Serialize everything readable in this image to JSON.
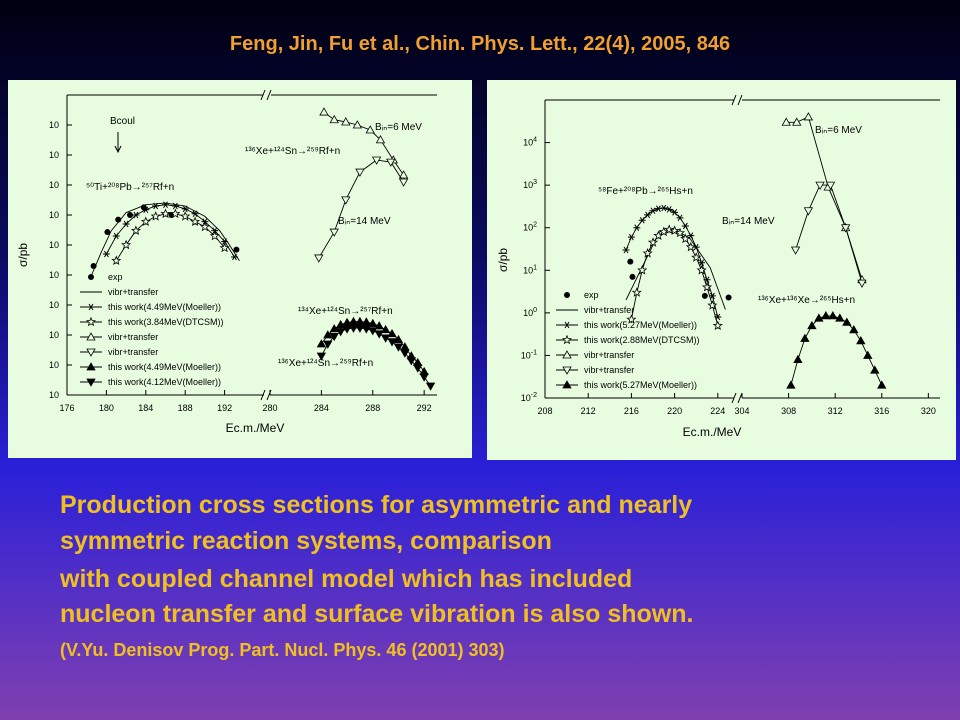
{
  "header": {
    "title": "Feng, Jin, Fu et al., Chin. Phys. Lett., 22(4), 2005, 846"
  },
  "chart_data": [
    {
      "type": "line",
      "y_label": "σ/pb",
      "x_label": "Ec.m./MeV",
      "log_y": true,
      "legend": "lower left",
      "ylim": [
        1e-05,
        100000.0
      ],
      "yticks": [
        {
          "value": 1e-05,
          "label": "10"
        },
        {
          "value": 0.0001,
          "label": "10"
        },
        {
          "value": 0.001,
          "label": "10"
        },
        {
          "value": 0.01,
          "label": "10"
        },
        {
          "value": 0.1,
          "label": "10"
        },
        {
          "value": 1,
          "label": "10"
        },
        {
          "value": 10,
          "label": "10"
        },
        {
          "value": 100,
          "label": "10"
        },
        {
          "value": 1000,
          "label": "10"
        },
        {
          "value": 10000,
          "label": "10"
        }
      ],
      "x_segments": [
        {
          "xlim": [
            176,
            196
          ],
          "xticks": [
            176,
            180,
            184,
            188,
            192
          ]
        },
        {
          "xlim": [
            280,
            293
          ],
          "xticks": [
            280,
            284,
            288,
            292
          ]
        }
      ],
      "series": [
        {
          "name": "exp",
          "color": "#000000",
          "marker": "circle",
          "line": false,
          "x": [
            178.7,
            180.1,
            181.2,
            182.4,
            183.8,
            186.6,
            193.2
          ],
          "values": [
            0.2,
            2.7,
            7,
            10,
            18,
            10,
            0.7
          ]
        },
        {
          "name": "vibr+transfer",
          "color": "#000000",
          "marker": "none",
          "line": true,
          "x": [
            178.5,
            179.5,
            180.5,
            182,
            184,
            186,
            188,
            190,
            191.5,
            192.5,
            193.5
          ],
          "values": [
            0.1,
            0.6,
            3,
            12,
            22,
            25,
            20,
            9,
            3,
            1,
            0.3
          ]
        },
        {
          "name": "this work(4.49MeV(Moeller))",
          "color": "#000000",
          "marker": "asterisk",
          "line": true,
          "x": [
            180,
            181,
            182,
            183,
            184,
            185,
            186,
            187,
            188,
            189,
            190,
            191,
            192,
            193
          ],
          "values": [
            0.5,
            2,
            5,
            10,
            15,
            20,
            22,
            20,
            16,
            11,
            6,
            3,
            1.3,
            0.4
          ]
        },
        {
          "name": "this work(3.84MeV(DTCSM))",
          "color": "#000000",
          "marker": "star-open",
          "line": true,
          "x": [
            181,
            182,
            183,
            184,
            185,
            186,
            187,
            188,
            189,
            190,
            191,
            192
          ],
          "values": [
            0.3,
            1,
            3,
            6,
            9,
            11,
            11,
            9,
            6,
            4,
            2,
            0.8
          ]
        },
        {
          "name": "vibr+transfer",
          "color": "#000000",
          "marker": "triangle-up-open",
          "line": true,
          "x": [
            284.2,
            285,
            285.9,
            286.8,
            287.8,
            288.6,
            289.6,
            290.4
          ],
          "values": [
            27000,
            15000,
            12600,
            10000,
            6800,
            3200,
            680,
            215
          ]
        },
        {
          "name": "vibr+transfer",
          "color": "#000000",
          "marker": "triangle-down-open",
          "line": true,
          "x": [
            283.8,
            285,
            285.9,
            287,
            288.3,
            289.4,
            290.4
          ],
          "values": [
            0.37,
            2.7,
            32,
            270,
            680,
            580,
            126
          ]
        },
        {
          "name": "this work(4.49MeV(Moeller))",
          "color": "#000000",
          "marker": "triangle-up",
          "line": true,
          "x": [
            284,
            284.5,
            285,
            285.5,
            286,
            286.5,
            287,
            287.5,
            288,
            288.5,
            289,
            289.5,
            290,
            290.5,
            291,
            291.5,
            292
          ],
          "values": [
            0.0005,
            0.001,
            0.0016,
            0.0022,
            0.0026,
            0.0028,
            0.0028,
            0.0027,
            0.0024,
            0.002,
            0.0015,
            0.0011,
            0.0007,
            0.0004,
            0.0002,
            0.00012,
            6e-05
          ]
        },
        {
          "name": "this work(4.12MeV(Moeller))",
          "color": "#000000",
          "marker": "triangle-down",
          "line": true,
          "x": [
            284,
            284.5,
            285,
            285.5,
            286,
            286.5,
            287,
            287.5,
            288,
            288.5,
            289,
            289.5,
            290,
            290.5,
            291,
            291.5,
            292,
            292.5
          ],
          "values": [
            0.0002,
            0.0005,
            0.0009,
            0.0013,
            0.0016,
            0.0017,
            0.0017,
            0.0016,
            0.0014,
            0.0011,
            0.0008,
            0.0006,
            0.0004,
            0.00025,
            0.00014,
            8e-05,
            4e-05,
            2e-05
          ]
        }
      ],
      "annotations": [
        "Bcoul",
        "Bᵢₙ=6 MeV",
        "¹³⁶Xe+¹²⁴Sn→²⁵⁹Rf+n",
        "⁵⁰Ti+²⁰⁸Pb→²⁵⁷Rf+n",
        "Bᵢₙ=14 MeV",
        "¹³⁴Xe+¹²⁴Sn→²⁵⁷Rf+n",
        "¹³⁶Xe+¹²⁴Sn→²⁵⁹Rf+n"
      ]
    },
    {
      "type": "line",
      "y_label": "σ/pb",
      "x_label": "Ec.m./MeV",
      "log_y": true,
      "legend": "lower left",
      "ylim": [
        0.01,
        100000
      ],
      "yticks": [
        {
          "value": 0.01,
          "label": "10",
          "exponent": "-2"
        },
        {
          "value": 0.1,
          "label": "10",
          "exponent": "-1"
        },
        {
          "value": 1,
          "label": "10",
          "exponent": "0"
        },
        {
          "value": 10,
          "label": "10",
          "exponent": "1"
        },
        {
          "value": 100,
          "label": "10",
          "exponent": "2"
        },
        {
          "value": 1000,
          "label": "10",
          "exponent": "3"
        },
        {
          "value": 10000,
          "label": "10",
          "exponent": "4"
        }
      ],
      "x_segments": [
        {
          "xlim": [
            208,
            225.5
          ],
          "xticks": [
            208,
            212,
            216,
            220,
            224
          ]
        },
        {
          "xlim": [
            304,
            321
          ],
          "xticks": [
            304,
            308,
            312,
            316,
            320
          ]
        }
      ],
      "series": [
        {
          "name": "exp",
          "color": "#000000",
          "marker": "circle",
          "line": false,
          "x": [
            215.9,
            216.1,
            222.8,
            225
          ],
          "values": [
            16,
            7,
            2.5,
            2.3
          ]
        },
        {
          "name": "vibr+transfer",
          "color": "#000000",
          "marker": "none",
          "line": true,
          "x": [
            215.5,
            218.6,
            220,
            221.4,
            223.3,
            224.7
          ],
          "values": [
            2,
            80,
            90,
            57,
            11.5,
            1.2
          ]
        },
        {
          "name": "this work(5.27MeV(Moeller))",
          "color": "#000000",
          "marker": "asterisk",
          "line": true,
          "x": [
            215.5,
            216,
            216.5,
            217,
            217.5,
            218,
            218.5,
            219,
            219.5,
            220,
            220.5,
            221,
            221.5,
            222,
            222.5,
            223,
            223.5,
            224
          ],
          "values": [
            30,
            60,
            100,
            150,
            200,
            250,
            280,
            290,
            270,
            230,
            170,
            110,
            65,
            35,
            15,
            6,
            2.5,
            0.8
          ]
        },
        {
          "name": "this work(2.88MeV(DTCSM))",
          "color": "#000000",
          "marker": "star-open",
          "line": true,
          "x": [
            216,
            216.5,
            217,
            217.5,
            218,
            218.5,
            219,
            219.5,
            220,
            220.5,
            221,
            221.5,
            222,
            222.5,
            223,
            223.5,
            224
          ],
          "values": [
            0.7,
            3,
            10,
            25,
            45,
            65,
            80,
            90,
            85,
            75,
            55,
            35,
            20,
            10,
            4,
            1.5,
            0.5
          ]
        },
        {
          "name": "vibr+transfer",
          "color": "#000000",
          "marker": "triangle-up-open",
          "line": true,
          "x": [
            307.8,
            308.7,
            309.7,
            311.4,
            312.9,
            314.3
          ],
          "values": [
            30000,
            30000,
            40000,
            900,
            100,
            6
          ]
        },
        {
          "name": "vibr+transfer",
          "color": "#000000",
          "marker": "triangle-down-open",
          "line": true,
          "x": [
            308.6,
            309.7,
            310.7,
            311.6,
            312.9,
            314.3
          ],
          "values": [
            30,
            250,
            1000,
            1000,
            100,
            5
          ]
        },
        {
          "name": "this work(5.27MeV(Moeller))",
          "color": "#000000",
          "marker": "triangle-up",
          "line": true,
          "x": [
            308.2,
            308.8,
            309.4,
            310,
            310.6,
            311.2,
            311.8,
            312.4,
            313,
            313.6,
            314.2,
            314.8,
            315.4,
            316
          ],
          "values": [
            0.02,
            0.08,
            0.25,
            0.5,
            0.75,
            0.85,
            0.85,
            0.75,
            0.6,
            0.4,
            0.22,
            0.1,
            0.045,
            0.02
          ]
        }
      ],
      "annotations": [
        "Bᵢₙ=6 MeV",
        "⁵⁸Fe+²⁰⁸Pb→²⁶⁵Hs+n",
        "Bᵢₙ=14 MeV",
        "¹³⁶Xe+¹³⁶Xe→²⁶⁵Hs+n"
      ]
    }
  ],
  "caption": {
    "lines": [
      "Production cross sections for asymmetric and nearly",
      "symmetric reaction systems, comparison",
      "with coupled channel model which has included",
      "nucleon transfer and surface vibration is also shown."
    ],
    "reference": "(V.Yu. Denisov Prog.  Part. Nucl. Phys. 46 (2001) 303)"
  }
}
